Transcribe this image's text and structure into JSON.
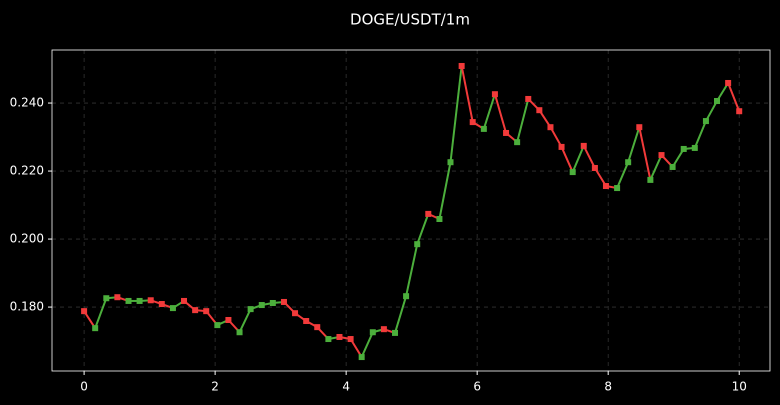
{
  "chart_data": {
    "type": "line",
    "title": "DOGE/USDT/1m",
    "x": [
      0,
      0.169,
      0.339,
      0.508,
      0.678,
      0.847,
      1.017,
      1.186,
      1.356,
      1.525,
      1.695,
      1.864,
      2.034,
      2.203,
      2.373,
      2.542,
      2.712,
      2.881,
      3.051,
      3.22,
      3.39,
      3.559,
      3.729,
      3.898,
      4.068,
      4.237,
      4.407,
      4.576,
      4.746,
      4.915,
      5.085,
      5.254,
      5.424,
      5.593,
      5.763,
      5.932,
      6.102,
      6.271,
      6.441,
      6.61,
      6.78,
      6.949,
      7.119,
      7.288,
      7.458,
      7.627,
      7.797,
      7.966,
      8.136,
      8.305,
      8.475,
      8.644,
      8.814,
      8.983,
      9.153,
      9.322,
      9.492,
      9.661,
      9.831,
      10
    ],
    "values": [
      0.1788,
      0.1738,
      0.1826,
      0.1829,
      0.1818,
      0.1818,
      0.182,
      0.1809,
      0.1797,
      0.1818,
      0.1791,
      0.1788,
      0.1747,
      0.1762,
      0.1726,
      0.1794,
      0.1806,
      0.1812,
      0.1815,
      0.1782,
      0.1759,
      0.1741,
      0.1706,
      0.1712,
      0.1706,
      0.1653,
      0.1726,
      0.1735,
      0.1724,
      0.1832,
      0.1985,
      0.2074,
      0.2059,
      0.2226,
      0.2509,
      0.2344,
      0.2324,
      0.2426,
      0.2312,
      0.2285,
      0.2412,
      0.2379,
      0.2329,
      0.2271,
      0.2197,
      0.2274,
      0.2209,
      0.2156,
      0.215,
      0.2226,
      0.2329,
      0.2174,
      0.2247,
      0.2212,
      0.2265,
      0.2268,
      0.2347,
      0.2406,
      0.2459,
      0.2376
    ],
    "up_color": "#4caf3c",
    "down_color": "#f23a3a",
    "xlim": [
      -0.49,
      10.47
    ],
    "ylim": [
      0.1612,
      0.2556
    ],
    "xticks": [
      0,
      2,
      4,
      6,
      8,
      10
    ],
    "yticks": [
      {
        "value": 0.18,
        "label": "0.180"
      },
      {
        "value": 0.2,
        "label": "0.200"
      },
      {
        "value": 0.22,
        "label": "0.220"
      },
      {
        "value": 0.24,
        "label": "0.240"
      }
    ],
    "grid": true
  }
}
